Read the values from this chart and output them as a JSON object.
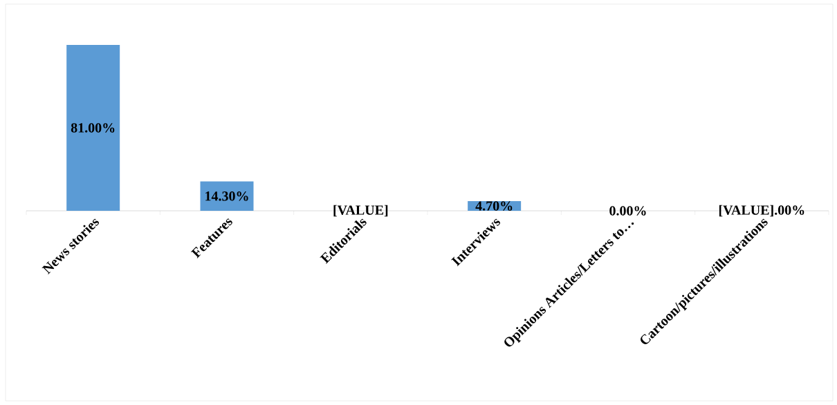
{
  "chart_data": {
    "type": "bar",
    "categories": [
      "News stories",
      "Features",
      "Editorials",
      "Interviews",
      "Opinions Articles/Letters to…",
      "Cartoon/pictures/illustrations"
    ],
    "values": [
      81,
      14.3,
      0,
      4.7,
      0,
      0
    ],
    "value_labels": [
      "81.00%",
      "14.30%",
      "[VALUE]",
      "4.70%",
      "0.00%",
      "[VALUE].00%"
    ],
    "color": "#5b9bd5"
  }
}
